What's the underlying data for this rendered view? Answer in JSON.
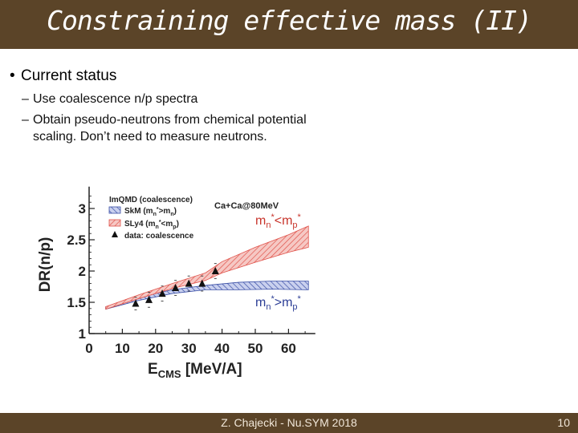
{
  "slide": {
    "title": "Constraining effective mass (II)",
    "bullet": "Current status",
    "sub1": "Use coalescence n/p spectra",
    "sub2_line1": "Obtain pseudo-neutrons from chemical potential",
    "sub2_line2": "scaling. Don’t need to measure neutrons.",
    "footer": "Z. Chajecki - Nu.SYM 2018",
    "page_number": "10"
  },
  "colors": {
    "bar": "#5b4428",
    "red_band": "#e0524a",
    "blue_band": "#3a4fa6"
  },
  "chart_data": {
    "type": "line",
    "ylabel": "DR(n/p)",
    "xlabel_main": "E",
    "xlabel_sub": "CMS",
    "xlabel_unit": " [MeV/A]",
    "xlim": [
      0,
      70
    ],
    "ylim": [
      1,
      3.35
    ],
    "xticks": [
      0,
      10,
      20,
      30,
      40,
      50,
      60
    ],
    "yticks": [
      1,
      1.5,
      2,
      2.5,
      3
    ],
    "legend_title": "ImQMD (coalescence)",
    "system_label": "Ca+Ca@80MeV",
    "legend": [
      {
        "name": "SkM (m",
        "sub1": "n",
        "sup": "*",
        "rel": ">m",
        "sub2": "n",
        "close": ")"
      },
      {
        "name": "SLy4 (m",
        "sub1": "n",
        "sup": "*",
        "rel": "<m",
        "sub2": "p",
        "close": ")"
      },
      {
        "name": "data: coalescence"
      }
    ],
    "annotations": [
      {
        "base": "m",
        "sub1": "n",
        "sup1": "*",
        "rel": "<m",
        "sub2": "p",
        "sup2": "*"
      },
      {
        "base": "m",
        "sub1": "n",
        "sup1": "*",
        "rel": ">m",
        "sub2": "p",
        "sup2": "*"
      }
    ],
    "series": [
      {
        "name": "SLy4 (mn*<mp*)",
        "x": [
          5,
          15,
          25,
          35,
          40,
          50,
          60,
          66
        ],
        "y_low": [
          1.39,
          1.56,
          1.72,
          1.85,
          1.97,
          2.14,
          2.3,
          2.38
        ],
        "y_high": [
          1.43,
          1.62,
          1.8,
          1.97,
          2.15,
          2.38,
          2.58,
          2.72
        ]
      },
      {
        "name": "SkM (mn*>mp*)",
        "x": [
          5,
          15,
          25,
          35,
          45,
          55,
          66
        ],
        "y_low": [
          1.39,
          1.53,
          1.64,
          1.7,
          1.7,
          1.71,
          1.7
        ],
        "y_high": [
          1.43,
          1.58,
          1.7,
          1.77,
          1.82,
          1.84,
          1.84
        ]
      },
      {
        "name": "data: coalescence",
        "x": [
          14,
          18,
          22,
          26,
          30,
          34,
          38
        ],
        "y": [
          1.48,
          1.54,
          1.64,
          1.73,
          1.8,
          1.8,
          2.0
        ],
        "err": [
          0.1,
          0.12,
          0.12,
          0.12,
          0.12,
          0.12,
          0.12
        ]
      }
    ]
  }
}
